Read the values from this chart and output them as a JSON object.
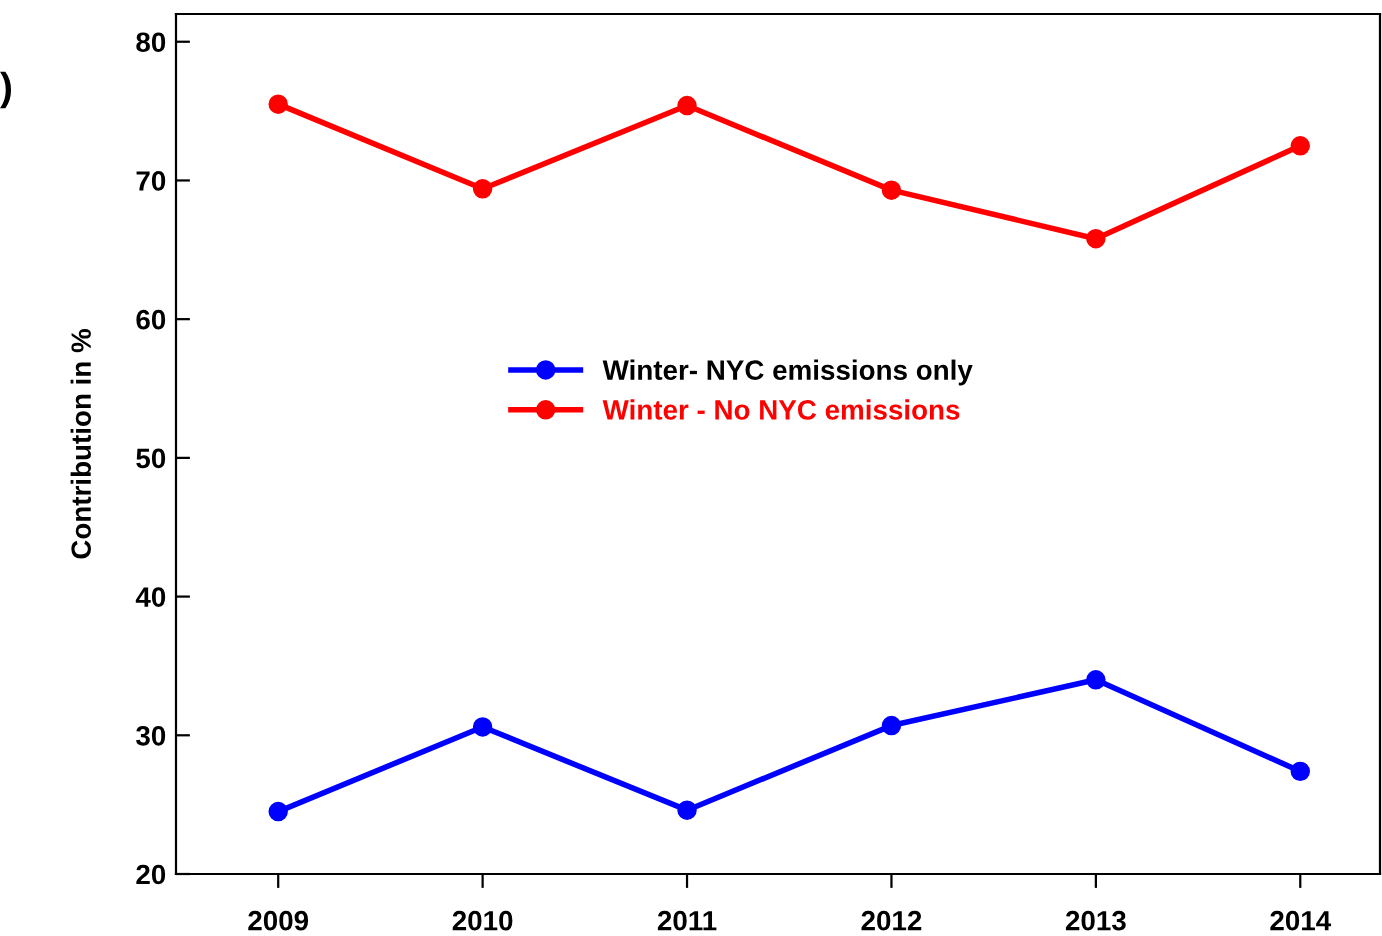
{
  "chart_data": {
    "type": "line",
    "ylabel": "Contribution in %",
    "categories": [
      "2009",
      "2010",
      "2011",
      "2012",
      "2013",
      "2014"
    ],
    "series": [
      {
        "name": "Winter- NYC emissions only",
        "color": "#0000ff",
        "values": [
          24.5,
          30.6,
          24.6,
          30.7,
          34.0,
          27.4
        ]
      },
      {
        "name": "Winter - No NYC emissions",
        "color": "#ff0000",
        "values": [
          75.5,
          69.4,
          75.4,
          69.3,
          65.8,
          72.5
        ]
      }
    ],
    "ylim": [
      20,
      82
    ],
    "yticks": [
      20,
      30,
      40,
      50,
      60,
      70,
      80
    ],
    "marker": "circle",
    "line_style": "solid",
    "legend": "center",
    "grid": false,
    "annotations": [
      ")"
    ]
  }
}
